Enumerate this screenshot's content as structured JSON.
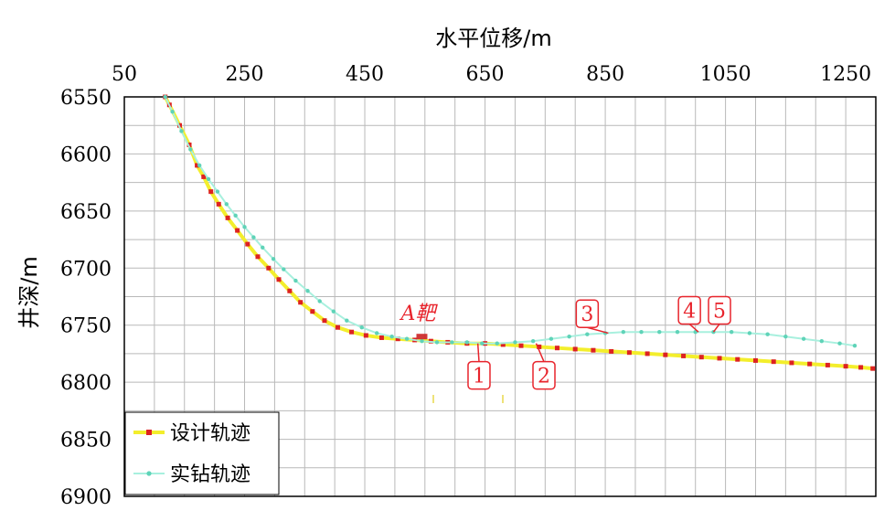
{
  "chart_data": {
    "type": "line",
    "xlabel": "水平位移/m",
    "ylabel": "井深/m",
    "xlim": [
      50,
      1300
    ],
    "ylim": [
      6550,
      6900
    ],
    "y_inverted": true,
    "x_axis_position": "top",
    "x_ticks": [
      50,
      250,
      450,
      650,
      850,
      1050,
      1250
    ],
    "y_ticks": [
      6550,
      6600,
      6650,
      6700,
      6750,
      6800,
      6850,
      6900
    ],
    "x_grid_step": 50,
    "y_grid_step": 25,
    "grid": true,
    "legend_position": "bottom-left",
    "colors": {
      "design_line": "#f3ee2c",
      "design_marker": "#dd2222",
      "actual_line": "#a8f0de",
      "actual_marker": "#5fd3b8",
      "grid": "#b9b9b9",
      "callout": "#e8242c"
    },
    "series": [
      {
        "name": "设计轨迹",
        "x": [
          118,
          125,
          142,
          158,
          171,
          182,
          194,
          207,
          222,
          238,
          255,
          272,
          290,
          307,
          325,
          343,
          363,
          383,
          405,
          428,
          452,
          478,
          505,
          533,
          560,
          588,
          620,
          650,
          680,
          710,
          740,
          770,
          800,
          830,
          860,
          890,
          920,
          950,
          980,
          1010,
          1040,
          1070,
          1100,
          1130,
          1160,
          1190,
          1220,
          1250,
          1275,
          1295
        ],
        "y": [
          6550,
          6557,
          6575,
          6592,
          6610,
          6620,
          6633,
          6644,
          6656,
          6667,
          6679,
          6690,
          6700,
          6710,
          6720,
          6730,
          6738,
          6746,
          6752,
          6756,
          6759,
          6761,
          6762,
          6763,
          6764,
          6765,
          6766,
          6766,
          6767,
          6768,
          6769,
          6770,
          6771,
          6772,
          6773,
          6774,
          6775,
          6776,
          6777,
          6778,
          6779,
          6780,
          6781,
          6782,
          6783,
          6784,
          6785,
          6786,
          6787,
          6788
        ]
      },
      {
        "name": "实钻轨迹",
        "x": [
          118,
          130,
          145,
          160,
          175,
          190,
          205,
          220,
          235,
          250,
          265,
          280,
          298,
          315,
          335,
          355,
          375,
          398,
          420,
          445,
          470,
          495,
          520,
          545,
          570,
          595,
          620,
          645,
          670,
          700,
          730,
          760,
          790,
          820,
          850,
          880,
          910,
          940,
          970,
          1000,
          1030,
          1060,
          1090,
          1120,
          1150,
          1180,
          1210,
          1240,
          1265
        ],
        "y": [
          6550,
          6563,
          6580,
          6596,
          6610,
          6622,
          6633,
          6644,
          6654,
          6664,
          6673,
          6682,
          6692,
          6701,
          6711,
          6720,
          6729,
          6738,
          6746,
          6752,
          6757,
          6760,
          6762,
          6764,
          6765,
          6765,
          6765,
          6766,
          6766,
          6765,
          6764,
          6762,
          6760,
          6758,
          6757,
          6756,
          6756,
          6756,
          6756,
          6756,
          6756,
          6756,
          6757,
          6758,
          6760,
          6762,
          6764,
          6766,
          6768
        ]
      }
    ],
    "annotations": {
      "target": {
        "label": "A靶",
        "x": 548,
        "y": 6760
      },
      "callouts": [
        {
          "label": "1",
          "x": 638,
          "y": 6766,
          "box_x": 640,
          "box_y": 6794
        },
        {
          "label": "2",
          "x": 735,
          "y": 6766,
          "box_x": 748,
          "box_y": 6794
        },
        {
          "label": "3",
          "x": 855,
          "y": 6757,
          "box_x": 820,
          "box_y": 6740
        },
        {
          "label": "4",
          "x": 1005,
          "y": 6756,
          "box_x": 990,
          "box_y": 6737
        },
        {
          "label": "5",
          "x": 1030,
          "y": 6756,
          "box_x": 1040,
          "box_y": 6737
        }
      ]
    }
  }
}
